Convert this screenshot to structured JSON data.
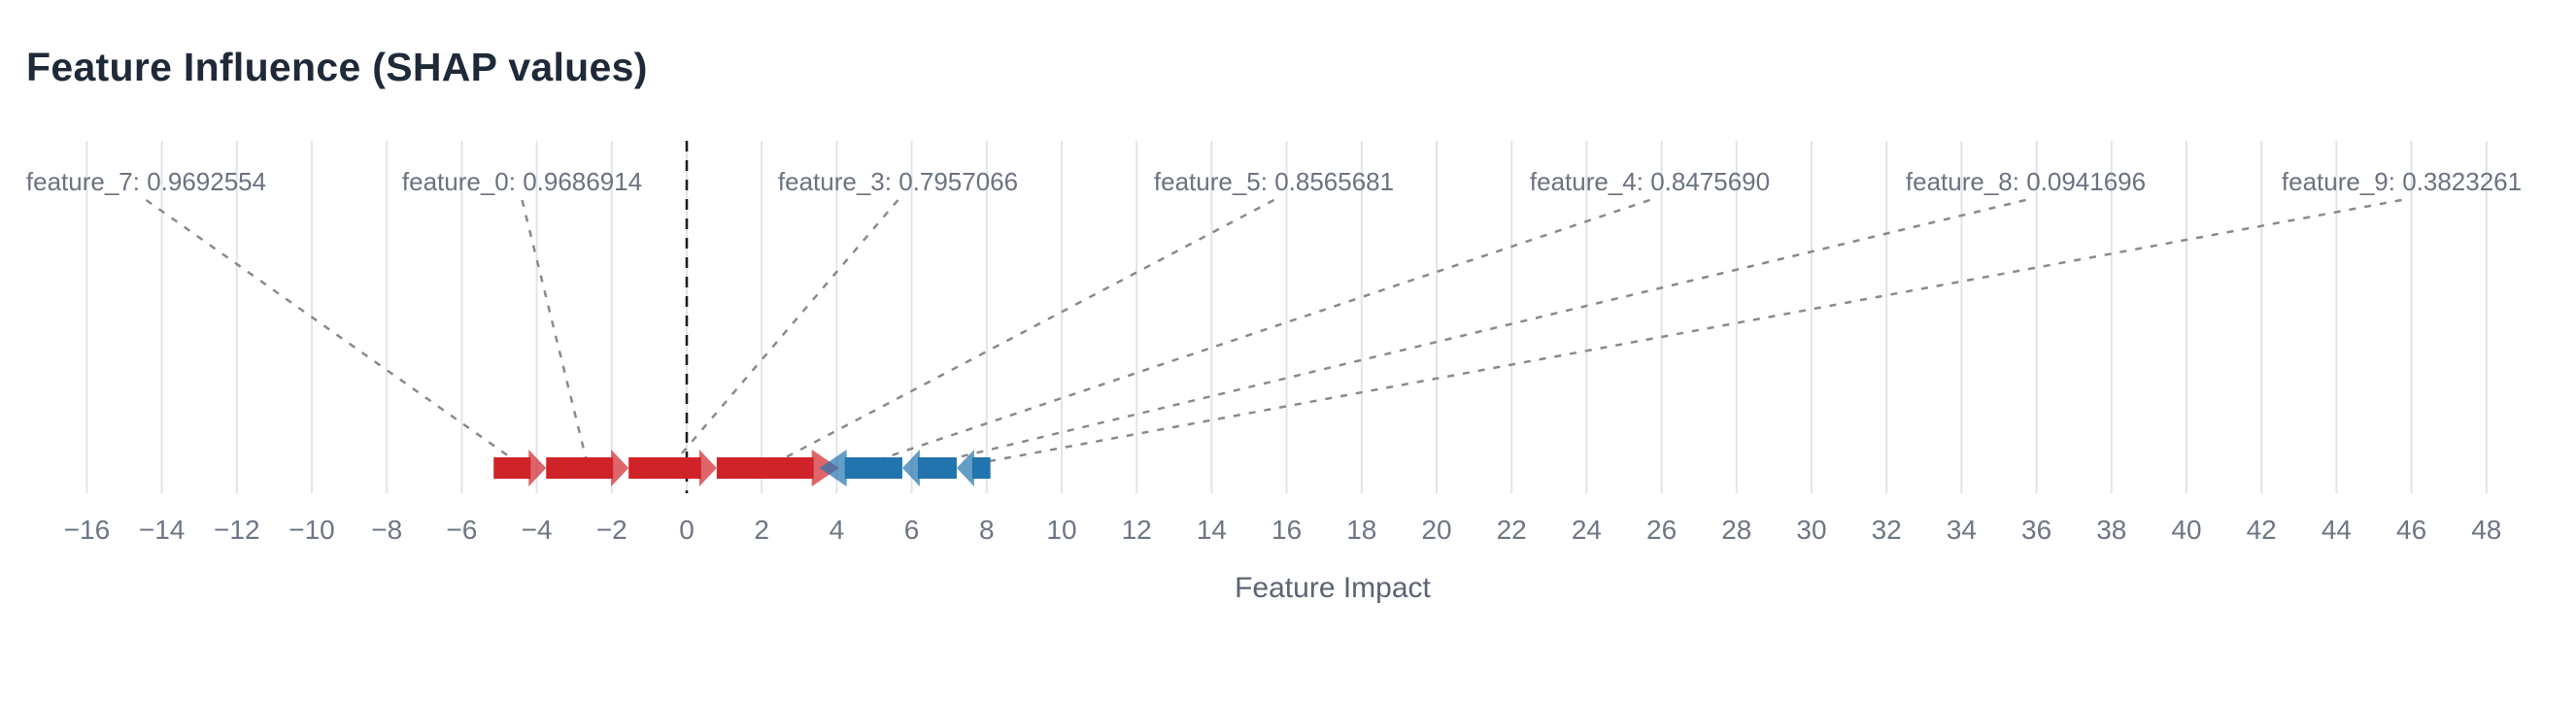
{
  "header": {
    "title": "Feature Influence (SHAP values)"
  },
  "chart_data": {
    "type": "shap_force_plot",
    "title": "Feature Influence (SHAP values)",
    "xlabel": "Feature Impact",
    "x_axis": {
      "tick_min": -16,
      "tick_max": 48,
      "tick_step": 2,
      "ticks": [
        -16,
        -14,
        -12,
        -10,
        -8,
        -6,
        -4,
        -2,
        0,
        2,
        4,
        6,
        8,
        10,
        12,
        14,
        16,
        18,
        20,
        22,
        24,
        26,
        28,
        30,
        32,
        34,
        36,
        38,
        40,
        42,
        44,
        46,
        48
      ],
      "grid": true,
      "zero_line_value": 0
    },
    "legend": "none",
    "junction_value": 3.8,
    "segments": [
      {
        "feature": "feature_7",
        "feature_value": "0.9692554",
        "label": "feature_7: 0.9692554",
        "direction": "positive",
        "start": -5.15,
        "end": -3.75,
        "shap_estimate": 1.4
      },
      {
        "feature": "feature_0",
        "feature_value": "0.9686914",
        "label": "feature_0: 0.9686914",
        "direction": "positive",
        "start": -3.75,
        "end": -1.55,
        "shap_estimate": 2.2
      },
      {
        "feature": "feature_3",
        "feature_value": "0.7957066",
        "label": "feature_3: 0.7957066",
        "direction": "positive",
        "start": -1.55,
        "end": 0.8,
        "shap_estimate": 2.35
      },
      {
        "feature": "feature_5",
        "feature_value": "0.8565681",
        "label": "feature_5: 0.8565681",
        "direction": "positive",
        "start": 0.8,
        "end": 3.8,
        "shap_estimate": 3.0
      },
      {
        "feature": "feature_4",
        "feature_value": "0.8475690",
        "label": "feature_4: 0.8475690",
        "direction": "negative",
        "start": 3.8,
        "end": 5.75,
        "shap_estimate": -1.95
      },
      {
        "feature": "feature_8",
        "feature_value": "0.0941696",
        "label": "feature_8: 0.0941696",
        "direction": "negative",
        "start": 5.75,
        "end": 7.2,
        "shap_estimate": -1.45
      },
      {
        "feature": "feature_9",
        "feature_value": "0.3823261",
        "label": "feature_9: 0.3823261",
        "direction": "negative",
        "start": 7.2,
        "end": 8.1,
        "shap_estimate": -0.9
      }
    ],
    "colors": {
      "positive_arrow": "#d02329",
      "negative_arrow": "#2274ae",
      "gridline": "#dfe5ec",
      "zero_line": "#1f1f1f",
      "connector": "#8a8a8a",
      "tick_label": "#6e7684",
      "feature_label": "#6b7280",
      "axis_title": "#5b6473",
      "chart_title": "#1f2a38"
    }
  }
}
